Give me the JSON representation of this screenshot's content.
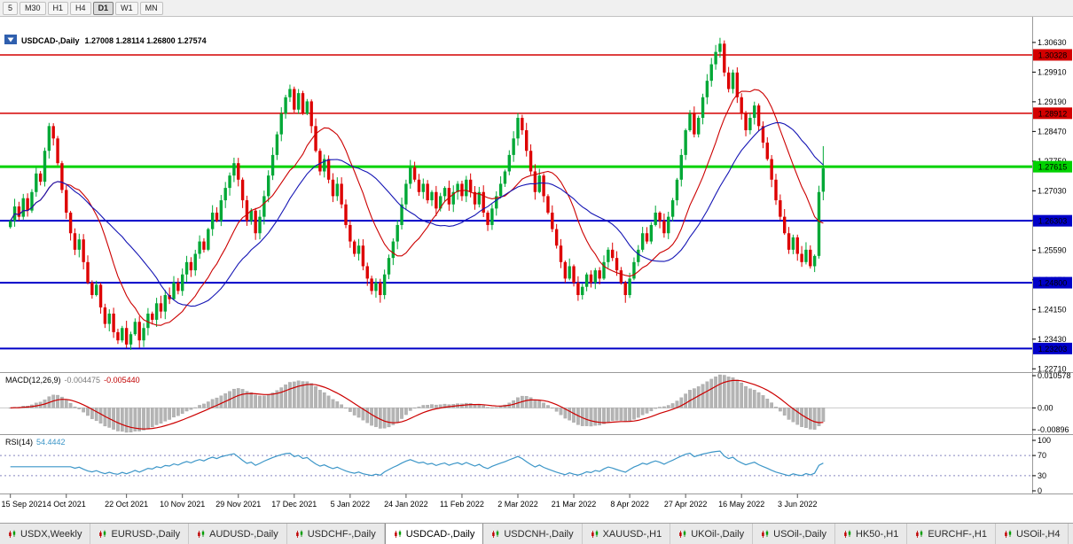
{
  "toolbar": {
    "timeframes": [
      "5",
      "M30",
      "H1",
      "H4",
      "D1",
      "W1",
      "MN"
    ],
    "active": "D1"
  },
  "chart": {
    "symbol": "USDCAD-,Daily",
    "ohlc_text": "1.27008 1.28114 1.26800 1.27574",
    "collapse_icon": "▼",
    "colors": {
      "up": "#00a836",
      "down": "#dd0000",
      "ma_fast": "#cc0000",
      "ma_slow": "#1414b4",
      "background": "#ffffff",
      "axis_line": "#9a9a9a",
      "macd_hist": "#b4b4b4",
      "macd_signal": "#cc0000",
      "rsi_line": "#3c96c8"
    },
    "price_axis_ticks": [
      "1.30630",
      "1.29910",
      "1.29190",
      "1.28470",
      "1.27750",
      "1.27030",
      "1.26310",
      "1.25590",
      "1.24870",
      "1.24150",
      "1.23430",
      "1.22710"
    ],
    "levels": [
      {
        "value": 1.30328,
        "label": "1.30328",
        "color": "#d40000",
        "width": 1.5
      },
      {
        "value": 1.28912,
        "label": "1.28912",
        "color": "#d40000",
        "width": 1.5
      },
      {
        "value": 1.27615,
        "label": "1.27615",
        "color": "#00d200",
        "width": 3
      },
      {
        "value": 1.26303,
        "label": "1.26303",
        "color": "#0000c8",
        "width": 2
      },
      {
        "value": 1.248,
        "label": "1.24800",
        "color": "#0000c8",
        "width": 2
      },
      {
        "value": 1.23203,
        "label": "1.23203",
        "color": "#0000c8",
        "width": 2
      }
    ]
  },
  "chart_data": {
    "type": "candlestick",
    "title": "USDCAD-,Daily",
    "ylim": [
      1.2263,
      1.308
    ],
    "x_labels": [
      {
        "label": "15 Sep 2021",
        "index": 0
      },
      {
        "label": "4 Oct 2021",
        "index": 13
      },
      {
        "label": "22 Oct 2021",
        "index": 27
      },
      {
        "label": "10 Nov 2021",
        "index": 40
      },
      {
        "label": "29 Nov 2021",
        "index": 53
      },
      {
        "label": "17 Dec 2021",
        "index": 66
      },
      {
        "label": "5 Jan 2022",
        "index": 79
      },
      {
        "label": "24 Jan 2022",
        "index": 92
      },
      {
        "label": "11 Feb 2022",
        "index": 105
      },
      {
        "label": "2 Mar 2022",
        "index": 118
      },
      {
        "label": "21 Mar 2022",
        "index": 131
      },
      {
        "label": "8 Apr 2022",
        "index": 144
      },
      {
        "label": "27 Apr 2022",
        "index": 157
      },
      {
        "label": "16 May 2022",
        "index": 170
      },
      {
        "label": "3 Jun 2022",
        "index": 183
      }
    ],
    "closes": [
      1.263,
      1.2665,
      1.264,
      1.2685,
      1.2655,
      1.27,
      1.2745,
      1.2725,
      1.28,
      1.286,
      1.283,
      1.277,
      1.2705,
      1.265,
      1.26,
      1.256,
      1.2585,
      1.253,
      1.248,
      1.245,
      1.2475,
      1.242,
      1.238,
      1.2405,
      1.236,
      1.234,
      1.237,
      1.233,
      1.2355,
      1.2385,
      1.234,
      1.237,
      1.2405,
      1.239,
      1.243,
      1.241,
      1.245,
      1.244,
      1.248,
      1.246,
      1.25,
      1.253,
      1.251,
      1.255,
      1.258,
      1.256,
      1.261,
      1.265,
      1.263,
      1.268,
      1.271,
      1.274,
      1.277,
      1.273,
      1.268,
      1.263,
      1.2655,
      1.26,
      1.264,
      1.269,
      1.274,
      1.279,
      1.284,
      1.289,
      1.293,
      1.295,
      1.29,
      1.294,
      1.289,
      1.292,
      1.286,
      1.28,
      1.275,
      1.278,
      1.273,
      1.269,
      1.272,
      1.267,
      1.262,
      1.258,
      1.255,
      1.257,
      1.252,
      1.249,
      1.246,
      1.248,
      1.245,
      1.25,
      1.254,
      1.258,
      1.262,
      1.267,
      1.272,
      1.276,
      1.273,
      1.27,
      1.272,
      1.268,
      1.27,
      1.266,
      1.269,
      1.271,
      1.267,
      1.27,
      1.272,
      1.269,
      1.273,
      1.27,
      1.267,
      1.27,
      1.265,
      1.262,
      1.266,
      1.269,
      1.272,
      1.275,
      1.279,
      1.283,
      1.288,
      1.285,
      1.28,
      1.275,
      1.27,
      1.274,
      1.269,
      1.265,
      1.261,
      1.257,
      1.253,
      1.249,
      1.252,
      1.248,
      1.245,
      1.247,
      1.25,
      1.248,
      1.251,
      1.249,
      1.253,
      1.256,
      1.254,
      1.251,
      1.248,
      1.245,
      1.249,
      1.253,
      1.256,
      1.26,
      1.258,
      1.262,
      1.265,
      1.263,
      1.26,
      1.264,
      1.268,
      1.273,
      1.279,
      1.285,
      1.289,
      1.284,
      1.288,
      1.293,
      1.297,
      1.301,
      1.304,
      1.306,
      1.299,
      1.295,
      1.299,
      1.293,
      1.289,
      1.285,
      1.288,
      1.291,
      1.286,
      1.282,
      1.278,
      1.273,
      1.268,
      1.264,
      1.26,
      1.256,
      1.259,
      1.255,
      1.253,
      1.256,
      1.252,
      1.2545,
      1.27,
      1.27574
    ],
    "last_candle": {
      "open": 1.27008,
      "high": 1.28114,
      "low": 1.268,
      "close": 1.27574
    },
    "overlays": [
      {
        "name": "ma-fast",
        "period": 14
      },
      {
        "name": "ma-slow",
        "period": 26
      }
    ],
    "indicators": [
      {
        "type": "MACD",
        "label": "MACD(12,26,9)",
        "value_main": "-0.004475",
        "value_signal": "-0.005440",
        "params": [
          12,
          26,
          9
        ],
        "axis_labels": [
          "0.010578",
          "0.00",
          "-0.00896"
        ]
      },
      {
        "type": "RSI",
        "label": "RSI(14)",
        "value": "54.4442",
        "period": 14,
        "axis_labels": [
          "100",
          "70",
          "30",
          "0"
        ],
        "levels": [
          70,
          30
        ]
      }
    ]
  },
  "tabs": {
    "active_index": 4,
    "items": [
      "USDX,Weekly",
      "EURUSD-,Daily",
      "AUDUSD-,Daily",
      "USDCHF-,Daily",
      "USDCAD-,Daily",
      "USDCNH-,Daily",
      "XAUUSD-,H1",
      "UKOil-,Daily",
      "USOil-,Daily",
      "HK50-,H1",
      "EURCHF-,H1",
      "USOil-,H4"
    ]
  }
}
